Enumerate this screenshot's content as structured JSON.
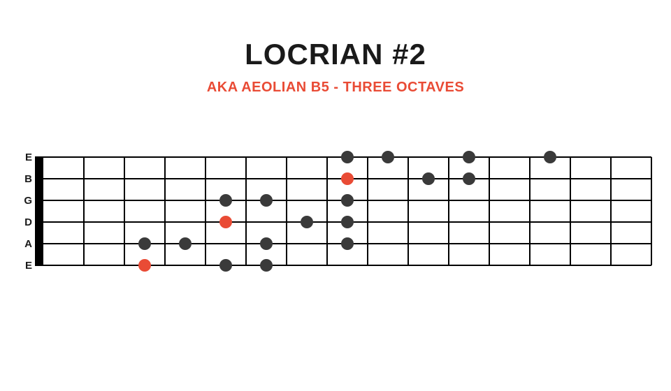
{
  "title": {
    "text": "LOCRIAN #2",
    "fontsize": 42,
    "color": "#1a1a1a"
  },
  "subtitle": {
    "text": "AKA AEOLIAN B5 - THREE OCTAVES",
    "fontsize": 20,
    "color": "#e94b35"
  },
  "fretboard": {
    "num_frets": 15,
    "num_strings": 6,
    "fret_spacing": 58,
    "string_spacing": 31,
    "nut_width": 12,
    "line_color": "#000000",
    "line_width": 2,
    "string_line_width": 2,
    "background": "#ffffff",
    "string_labels": [
      "E",
      "B",
      "G",
      "D",
      "A",
      "E"
    ],
    "label_fontsize": 15,
    "label_color": "#1a1a1a",
    "dot_radius": 9,
    "dot_color_normal": "#3a3a3a",
    "dot_color_root": "#e94b35",
    "dots": [
      {
        "string": 5,
        "fret": 3,
        "root": true
      },
      {
        "string": 5,
        "fret": 5,
        "root": false
      },
      {
        "string": 5,
        "fret": 6,
        "root": false
      },
      {
        "string": 4,
        "fret": 3,
        "root": false
      },
      {
        "string": 4,
        "fret": 4,
        "root": false
      },
      {
        "string": 4,
        "fret": 6,
        "root": false
      },
      {
        "string": 4,
        "fret": 8,
        "root": false
      },
      {
        "string": 3,
        "fret": 5,
        "root": true
      },
      {
        "string": 3,
        "fret": 7,
        "root": false
      },
      {
        "string": 3,
        "fret": 8,
        "root": false
      },
      {
        "string": 2,
        "fret": 5,
        "root": false
      },
      {
        "string": 2,
        "fret": 6,
        "root": false
      },
      {
        "string": 2,
        "fret": 8,
        "root": false
      },
      {
        "string": 1,
        "fret": 8,
        "root": true
      },
      {
        "string": 1,
        "fret": 10,
        "root": false
      },
      {
        "string": 1,
        "fret": 11,
        "root": false
      },
      {
        "string": 0,
        "fret": 8,
        "root": false
      },
      {
        "string": 0,
        "fret": 9,
        "root": false
      },
      {
        "string": 0,
        "fret": 11,
        "root": false
      },
      {
        "string": 0,
        "fret": 13,
        "root": false
      }
    ]
  }
}
